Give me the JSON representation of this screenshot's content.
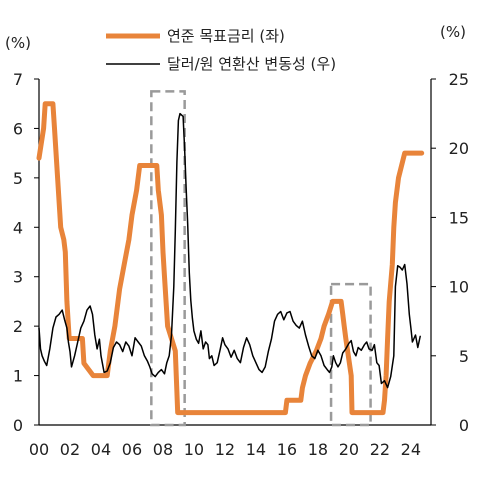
{
  "chart_data": {
    "type": "line",
    "title": "",
    "colors": {
      "fed_rate": "#E8843A",
      "krw_vol": "#000000",
      "highlight": "#9A9A9A"
    },
    "y_left": {
      "unit": "(%)",
      "min": 0,
      "max": 7,
      "ticks": [
        "0",
        "1",
        "2",
        "3",
        "4",
        "5",
        "6",
        "7"
      ]
    },
    "y_right": {
      "unit": "(%)",
      "min": 0,
      "max": 25,
      "ticks": [
        "0",
        "5",
        "10",
        "15",
        "20",
        "25"
      ]
    },
    "x": {
      "min": 2000,
      "max": 2025.3,
      "ticks": [
        {
          "v": 2000,
          "label": "00"
        },
        {
          "v": 2002,
          "label": "02"
        },
        {
          "v": 2004,
          "label": "04"
        },
        {
          "v": 2006,
          "label": "06"
        },
        {
          "v": 2008,
          "label": "08"
        },
        {
          "v": 2010,
          "label": "10"
        },
        {
          "v": 2012,
          "label": "12"
        },
        {
          "v": 2014,
          "label": "14"
        },
        {
          "v": 2016,
          "label": "16"
        },
        {
          "v": 2018,
          "label": "18"
        },
        {
          "v": 2020,
          "label": "20"
        },
        {
          "v": 2022,
          "label": "22"
        },
        {
          "v": 2024,
          "label": "24"
        }
      ]
    },
    "series": [
      {
        "name": "연준 목표금리 (좌)",
        "axis": "left",
        "key": "fed_rate",
        "points": [
          [
            2000.0,
            5.4
          ],
          [
            2000.3,
            6.0
          ],
          [
            2000.4,
            6.5
          ],
          [
            2000.9,
            6.5
          ],
          [
            2001.0,
            6.0
          ],
          [
            2001.2,
            5.0
          ],
          [
            2001.4,
            4.0
          ],
          [
            2001.6,
            3.75
          ],
          [
            2001.7,
            3.5
          ],
          [
            2001.8,
            2.5
          ],
          [
            2001.95,
            1.75
          ],
          [
            2002.8,
            1.75
          ],
          [
            2002.9,
            1.25
          ],
          [
            2003.5,
            1.0
          ],
          [
            2004.4,
            1.0
          ],
          [
            2004.6,
            1.5
          ],
          [
            2004.9,
            2.0
          ],
          [
            2005.2,
            2.75
          ],
          [
            2005.5,
            3.25
          ],
          [
            2005.8,
            3.75
          ],
          [
            2006.0,
            4.25
          ],
          [
            2006.3,
            4.75
          ],
          [
            2006.5,
            5.25
          ],
          [
            2007.6,
            5.25
          ],
          [
            2007.7,
            4.75
          ],
          [
            2007.9,
            4.25
          ],
          [
            2008.0,
            3.5
          ],
          [
            2008.1,
            3.0
          ],
          [
            2008.3,
            2.0
          ],
          [
            2008.8,
            1.5
          ],
          [
            2008.95,
            0.25
          ],
          [
            2015.9,
            0.25
          ],
          [
            2016.0,
            0.5
          ],
          [
            2016.9,
            0.5
          ],
          [
            2017.0,
            0.75
          ],
          [
            2017.2,
            1.0
          ],
          [
            2017.5,
            1.25
          ],
          [
            2017.9,
            1.5
          ],
          [
            2018.2,
            1.75
          ],
          [
            2018.4,
            2.0
          ],
          [
            2018.7,
            2.25
          ],
          [
            2018.95,
            2.5
          ],
          [
            2019.5,
            2.5
          ],
          [
            2019.6,
            2.25
          ],
          [
            2019.7,
            2.0
          ],
          [
            2019.8,
            1.75
          ],
          [
            2020.15,
            1.0
          ],
          [
            2020.2,
            0.25
          ],
          [
            2022.2,
            0.25
          ],
          [
            2022.3,
            0.5
          ],
          [
            2022.4,
            1.0
          ],
          [
            2022.5,
            1.75
          ],
          [
            2022.6,
            2.5
          ],
          [
            2022.8,
            3.25
          ],
          [
            2022.9,
            4.0
          ],
          [
            2023.0,
            4.5
          ],
          [
            2023.2,
            5.0
          ],
          [
            2023.4,
            5.25
          ],
          [
            2023.6,
            5.5
          ],
          [
            2024.7,
            5.5
          ]
        ]
      },
      {
        "name": "달러/원 연환산 변동성 (우)",
        "axis": "right",
        "key": "krw_vol",
        "points": [
          [
            2000.0,
            7.0
          ],
          [
            2000.1,
            5.5
          ],
          [
            2000.2,
            5.0
          ],
          [
            2000.35,
            4.6
          ],
          [
            2000.5,
            4.3
          ],
          [
            2000.7,
            5.5
          ],
          [
            2000.9,
            7.0
          ],
          [
            2001.1,
            7.8
          ],
          [
            2001.3,
            8.0
          ],
          [
            2001.5,
            8.3
          ],
          [
            2001.65,
            7.6
          ],
          [
            2001.8,
            7.0
          ],
          [
            2001.9,
            6.0
          ],
          [
            2002.0,
            5.3
          ],
          [
            2002.1,
            4.2
          ],
          [
            2002.3,
            5.0
          ],
          [
            2002.5,
            6.0
          ],
          [
            2002.7,
            7.0
          ],
          [
            2002.9,
            7.5
          ],
          [
            2003.1,
            8.3
          ],
          [
            2003.3,
            8.6
          ],
          [
            2003.45,
            8.0
          ],
          [
            2003.6,
            6.5
          ],
          [
            2003.75,
            5.5
          ],
          [
            2003.9,
            6.2
          ],
          [
            2004.0,
            5.0
          ],
          [
            2004.2,
            3.8
          ],
          [
            2004.4,
            3.9
          ],
          [
            2004.6,
            4.5
          ],
          [
            2004.8,
            5.6
          ],
          [
            2005.0,
            6.0
          ],
          [
            2005.2,
            5.8
          ],
          [
            2005.4,
            5.3
          ],
          [
            2005.6,
            6.0
          ],
          [
            2005.8,
            5.7
          ],
          [
            2006.0,
            5.0
          ],
          [
            2006.2,
            6.3
          ],
          [
            2006.4,
            6.0
          ],
          [
            2006.6,
            5.7
          ],
          [
            2006.8,
            5.0
          ],
          [
            2007.0,
            4.6
          ],
          [
            2007.15,
            4.2
          ],
          [
            2007.3,
            3.7
          ],
          [
            2007.5,
            3.5
          ],
          [
            2007.7,
            3.8
          ],
          [
            2007.9,
            4.0
          ],
          [
            2008.1,
            3.7
          ],
          [
            2008.25,
            4.5
          ],
          [
            2008.4,
            5.0
          ],
          [
            2008.55,
            6.5
          ],
          [
            2008.7,
            10.0
          ],
          [
            2008.8,
            14.0
          ],
          [
            2008.9,
            19.0
          ],
          [
            2009.0,
            22.0
          ],
          [
            2009.1,
            22.5
          ],
          [
            2009.3,
            22.3
          ],
          [
            2009.4,
            20.0
          ],
          [
            2009.5,
            17.0
          ],
          [
            2009.6,
            14.5
          ],
          [
            2009.7,
            11.0
          ],
          [
            2009.8,
            9.0
          ],
          [
            2009.9,
            7.7
          ],
          [
            2010.0,
            6.8
          ],
          [
            2010.15,
            6.2
          ],
          [
            2010.3,
            5.9
          ],
          [
            2010.45,
            6.8
          ],
          [
            2010.6,
            5.5
          ],
          [
            2010.75,
            6.0
          ],
          [
            2010.9,
            5.8
          ],
          [
            2011.0,
            4.8
          ],
          [
            2011.15,
            5.0
          ],
          [
            2011.3,
            4.3
          ],
          [
            2011.5,
            4.5
          ],
          [
            2011.7,
            5.5
          ],
          [
            2011.85,
            6.3
          ],
          [
            2012.0,
            5.8
          ],
          [
            2012.2,
            5.5
          ],
          [
            2012.4,
            4.9
          ],
          [
            2012.6,
            5.4
          ],
          [
            2012.8,
            4.8
          ],
          [
            2013.0,
            4.5
          ],
          [
            2013.2,
            5.6
          ],
          [
            2013.4,
            6.3
          ],
          [
            2013.6,
            5.8
          ],
          [
            2013.8,
            5.0
          ],
          [
            2014.0,
            4.5
          ],
          [
            2014.2,
            4.0
          ],
          [
            2014.4,
            3.8
          ],
          [
            2014.6,
            4.2
          ],
          [
            2014.8,
            5.3
          ],
          [
            2015.0,
            6.2
          ],
          [
            2015.2,
            7.5
          ],
          [
            2015.4,
            8.0
          ],
          [
            2015.6,
            8.2
          ],
          [
            2015.8,
            7.6
          ],
          [
            2016.0,
            8.1
          ],
          [
            2016.2,
            8.2
          ],
          [
            2016.4,
            7.5
          ],
          [
            2016.6,
            7.2
          ],
          [
            2016.8,
            7.0
          ],
          [
            2017.0,
            7.5
          ],
          [
            2017.2,
            6.5
          ],
          [
            2017.4,
            5.7
          ],
          [
            2017.6,
            5.0
          ],
          [
            2017.8,
            4.8
          ],
          [
            2018.0,
            5.4
          ],
          [
            2018.2,
            5.0
          ],
          [
            2018.4,
            4.3
          ],
          [
            2018.6,
            4.0
          ],
          [
            2018.75,
            3.8
          ],
          [
            2018.9,
            4.2
          ],
          [
            2019.0,
            5.0
          ],
          [
            2019.15,
            4.5
          ],
          [
            2019.3,
            4.2
          ],
          [
            2019.45,
            4.5
          ],
          [
            2019.6,
            5.2
          ],
          [
            2019.8,
            5.5
          ],
          [
            2020.0,
            5.9
          ],
          [
            2020.15,
            6.1
          ],
          [
            2020.3,
            5.3
          ],
          [
            2020.45,
            5.0
          ],
          [
            2020.6,
            5.6
          ],
          [
            2020.8,
            5.4
          ],
          [
            2021.0,
            5.8
          ],
          [
            2021.15,
            6.0
          ],
          [
            2021.3,
            5.5
          ],
          [
            2021.5,
            5.4
          ],
          [
            2021.65,
            5.8
          ],
          [
            2021.8,
            4.5
          ],
          [
            2021.95,
            4.3
          ],
          [
            2022.1,
            3.0
          ],
          [
            2022.3,
            3.2
          ],
          [
            2022.5,
            2.7
          ],
          [
            2022.7,
            3.5
          ],
          [
            2022.9,
            5.0
          ],
          [
            2023.0,
            10.0
          ],
          [
            2023.15,
            11.5
          ],
          [
            2023.3,
            11.4
          ],
          [
            2023.45,
            11.2
          ],
          [
            2023.6,
            11.6
          ],
          [
            2023.75,
            10.2
          ],
          [
            2023.9,
            8.0
          ],
          [
            2024.0,
            7.0
          ],
          [
            2024.1,
            6.0
          ],
          [
            2024.3,
            6.5
          ],
          [
            2024.45,
            5.6
          ],
          [
            2024.6,
            6.4
          ]
        ]
      }
    ],
    "highlights": [
      {
        "x0": 2007.25,
        "x1": 2009.4,
        "y0": 0,
        "y1": 6.75
      },
      {
        "x0": 2018.85,
        "x1": 2021.4,
        "y0": 0,
        "y1": 2.85
      }
    ],
    "legend": {
      "position": "top-center"
    }
  }
}
